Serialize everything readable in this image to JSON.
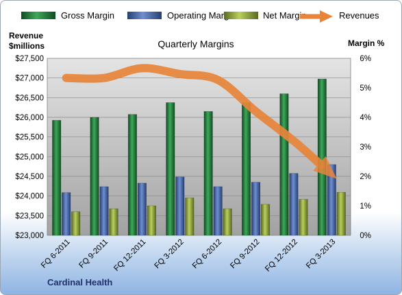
{
  "chart_data": {
    "type": "bar",
    "title": "Quarterly Margins",
    "company": "Cardinal Health",
    "y_left_label_line1": "Revenue",
    "y_left_label_line2": "$millions",
    "y_right_label": "Margin %",
    "categories": [
      "FQ 6-2011",
      "FQ 9-2011",
      "FQ 12-2011",
      "FQ 3-2012",
      "FQ 6-2012",
      "FQ 9-2012",
      "FQ 12-2012",
      "FQ 3-2013"
    ],
    "left_axis": {
      "min": 23000,
      "max": 27500,
      "step": 500
    },
    "right_axis": {
      "min": 0,
      "max": 6,
      "step": 1
    },
    "left_tick_labels": [
      "$23,000",
      "$23,500",
      "$24,000",
      "$24,500",
      "$25,000",
      "$25,500",
      "$26,000",
      "$26,500",
      "$27,000",
      "$27,500"
    ],
    "right_tick_labels": [
      "0%",
      "1%",
      "2%",
      "3%",
      "4%",
      "5%",
      "6%"
    ],
    "series": [
      {
        "name": "Gross Margin",
        "kind": "bar",
        "axis": "right",
        "color": "#1f7a3a",
        "values": [
          3.9,
          4.0,
          4.1,
          4.5,
          4.2,
          4.5,
          4.8,
          5.3
        ]
      },
      {
        "name": "Operating Margin",
        "kind": "bar",
        "axis": "right",
        "color": "#3f62a8",
        "values": [
          1.45,
          1.65,
          1.77,
          1.98,
          1.65,
          1.8,
          2.1,
          2.4
        ]
      },
      {
        "name": "Net Margin",
        "kind": "bar",
        "axis": "right",
        "color": "#8fa63a",
        "values": [
          0.8,
          0.9,
          1.0,
          1.27,
          0.9,
          1.05,
          1.22,
          1.46
        ]
      },
      {
        "name": "Revenues",
        "kind": "line",
        "axis": "left",
        "color": "#e8853a",
        "values": [
          27000,
          27000,
          27250,
          27100,
          26950,
          26150,
          25400,
          24550
        ]
      }
    ],
    "grid": true,
    "legend": "top"
  }
}
